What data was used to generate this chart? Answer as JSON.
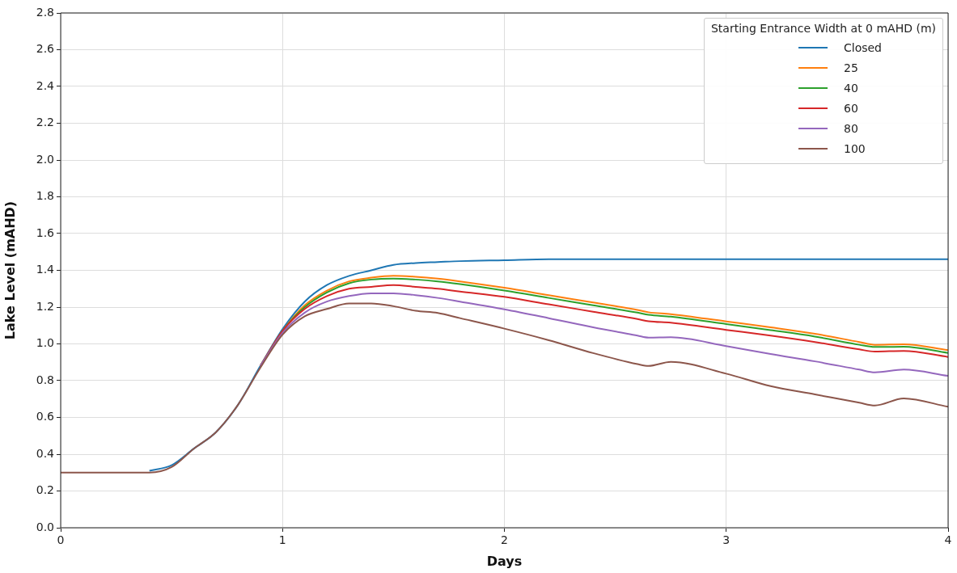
{
  "chart_data": {
    "type": "line",
    "xlabel": "Days",
    "ylabel": "Lake Level (mAHD)",
    "legend_title": "Starting Entrance Width at 0 mAHD (m)",
    "legend": "top right",
    "grid": true,
    "marker": "none",
    "line_style": "solid",
    "x": [
      0,
      0.1,
      0.2,
      0.3,
      0.4,
      0.5,
      0.6,
      0.7,
      0.8,
      0.9,
      1.0,
      1.1,
      1.2,
      1.3,
      1.4,
      1.5,
      1.6,
      1.7,
      1.8,
      2.0,
      2.2,
      2.4,
      2.6,
      2.65,
      2.75,
      3.0,
      3.2,
      3.4,
      3.6,
      3.67,
      3.8,
      4.0
    ],
    "xlim": [
      0,
      4
    ],
    "xticks": [
      0,
      1,
      2,
      3,
      4
    ],
    "ylim": [
      0,
      2.8
    ],
    "yticks": [
      {
        "value": 0,
        "label": "0.0"
      },
      0.2,
      0.4,
      0.6,
      0.8,
      {
        "value": 1,
        "label": "1.0"
      },
      1.2,
      1.4,
      1.6,
      1.8,
      {
        "value": 2,
        "label": "2.0"
      },
      2.2,
      2.4,
      2.6,
      2.8
    ],
    "series": [
      {
        "name": "Closed",
        "color": "#1f77b4",
        "values": [
          null,
          null,
          null,
          null,
          0.31,
          0.34,
          0.43,
          0.52,
          0.67,
          0.88,
          1.08,
          1.23,
          1.32,
          1.37,
          1.4,
          1.43,
          1.44,
          1.445,
          1.45,
          1.455,
          1.46,
          1.46,
          1.46,
          1.46,
          1.46,
          1.46,
          1.46,
          1.46,
          1.46,
          1.46,
          1.46,
          1.46
        ]
      },
      {
        "name": "25",
        "color": "#ff7f0e",
        "values": [
          null,
          null,
          null,
          null,
          null,
          null,
          null,
          null,
          null,
          0.88,
          1.07,
          1.21,
          1.29,
          1.34,
          1.36,
          1.37,
          1.365,
          1.355,
          1.34,
          1.305,
          1.265,
          1.225,
          1.185,
          1.172,
          1.162,
          1.122,
          1.09,
          1.055,
          1.01,
          0.995,
          0.998,
          0.966
        ]
      },
      {
        "name": "40",
        "color": "#2ca02c",
        "values": [
          null,
          null,
          null,
          null,
          null,
          null,
          null,
          null,
          null,
          0.88,
          1.07,
          1.2,
          1.28,
          1.33,
          1.35,
          1.355,
          1.35,
          1.34,
          1.325,
          1.29,
          1.25,
          1.21,
          1.17,
          1.158,
          1.148,
          1.108,
          1.075,
          1.04,
          0.995,
          0.983,
          0.985,
          0.951
        ]
      },
      {
        "name": "60",
        "color": "#d62728",
        "values": [
          null,
          null,
          null,
          null,
          null,
          null,
          null,
          null,
          null,
          0.88,
          1.07,
          1.19,
          1.26,
          1.3,
          1.31,
          1.32,
          1.31,
          1.3,
          1.285,
          1.256,
          1.215,
          1.175,
          1.135,
          1.123,
          1.115,
          1.076,
          1.045,
          1.01,
          0.97,
          0.958,
          0.962,
          0.929
        ]
      },
      {
        "name": "80",
        "color": "#9467bd",
        "values": [
          null,
          null,
          null,
          null,
          null,
          null,
          null,
          null,
          null,
          0.88,
          1.06,
          1.17,
          1.23,
          1.26,
          1.275,
          1.275,
          1.265,
          1.25,
          1.23,
          1.188,
          1.14,
          1.09,
          1.045,
          1.034,
          1.036,
          0.988,
          0.945,
          0.905,
          0.86,
          0.845,
          0.86,
          0.826
        ]
      },
      {
        "name": "100",
        "color": "#8c564b",
        "values": [
          0.3,
          0.3,
          0.3,
          0.3,
          0.3,
          0.33,
          0.43,
          0.52,
          0.67,
          0.87,
          1.05,
          1.15,
          1.19,
          1.22,
          1.22,
          1.205,
          1.18,
          1.168,
          1.14,
          1.083,
          1.02,
          0.95,
          0.89,
          0.88,
          0.902,
          0.838,
          0.77,
          0.725,
          0.68,
          0.665,
          0.703,
          0.658
        ]
      }
    ]
  }
}
